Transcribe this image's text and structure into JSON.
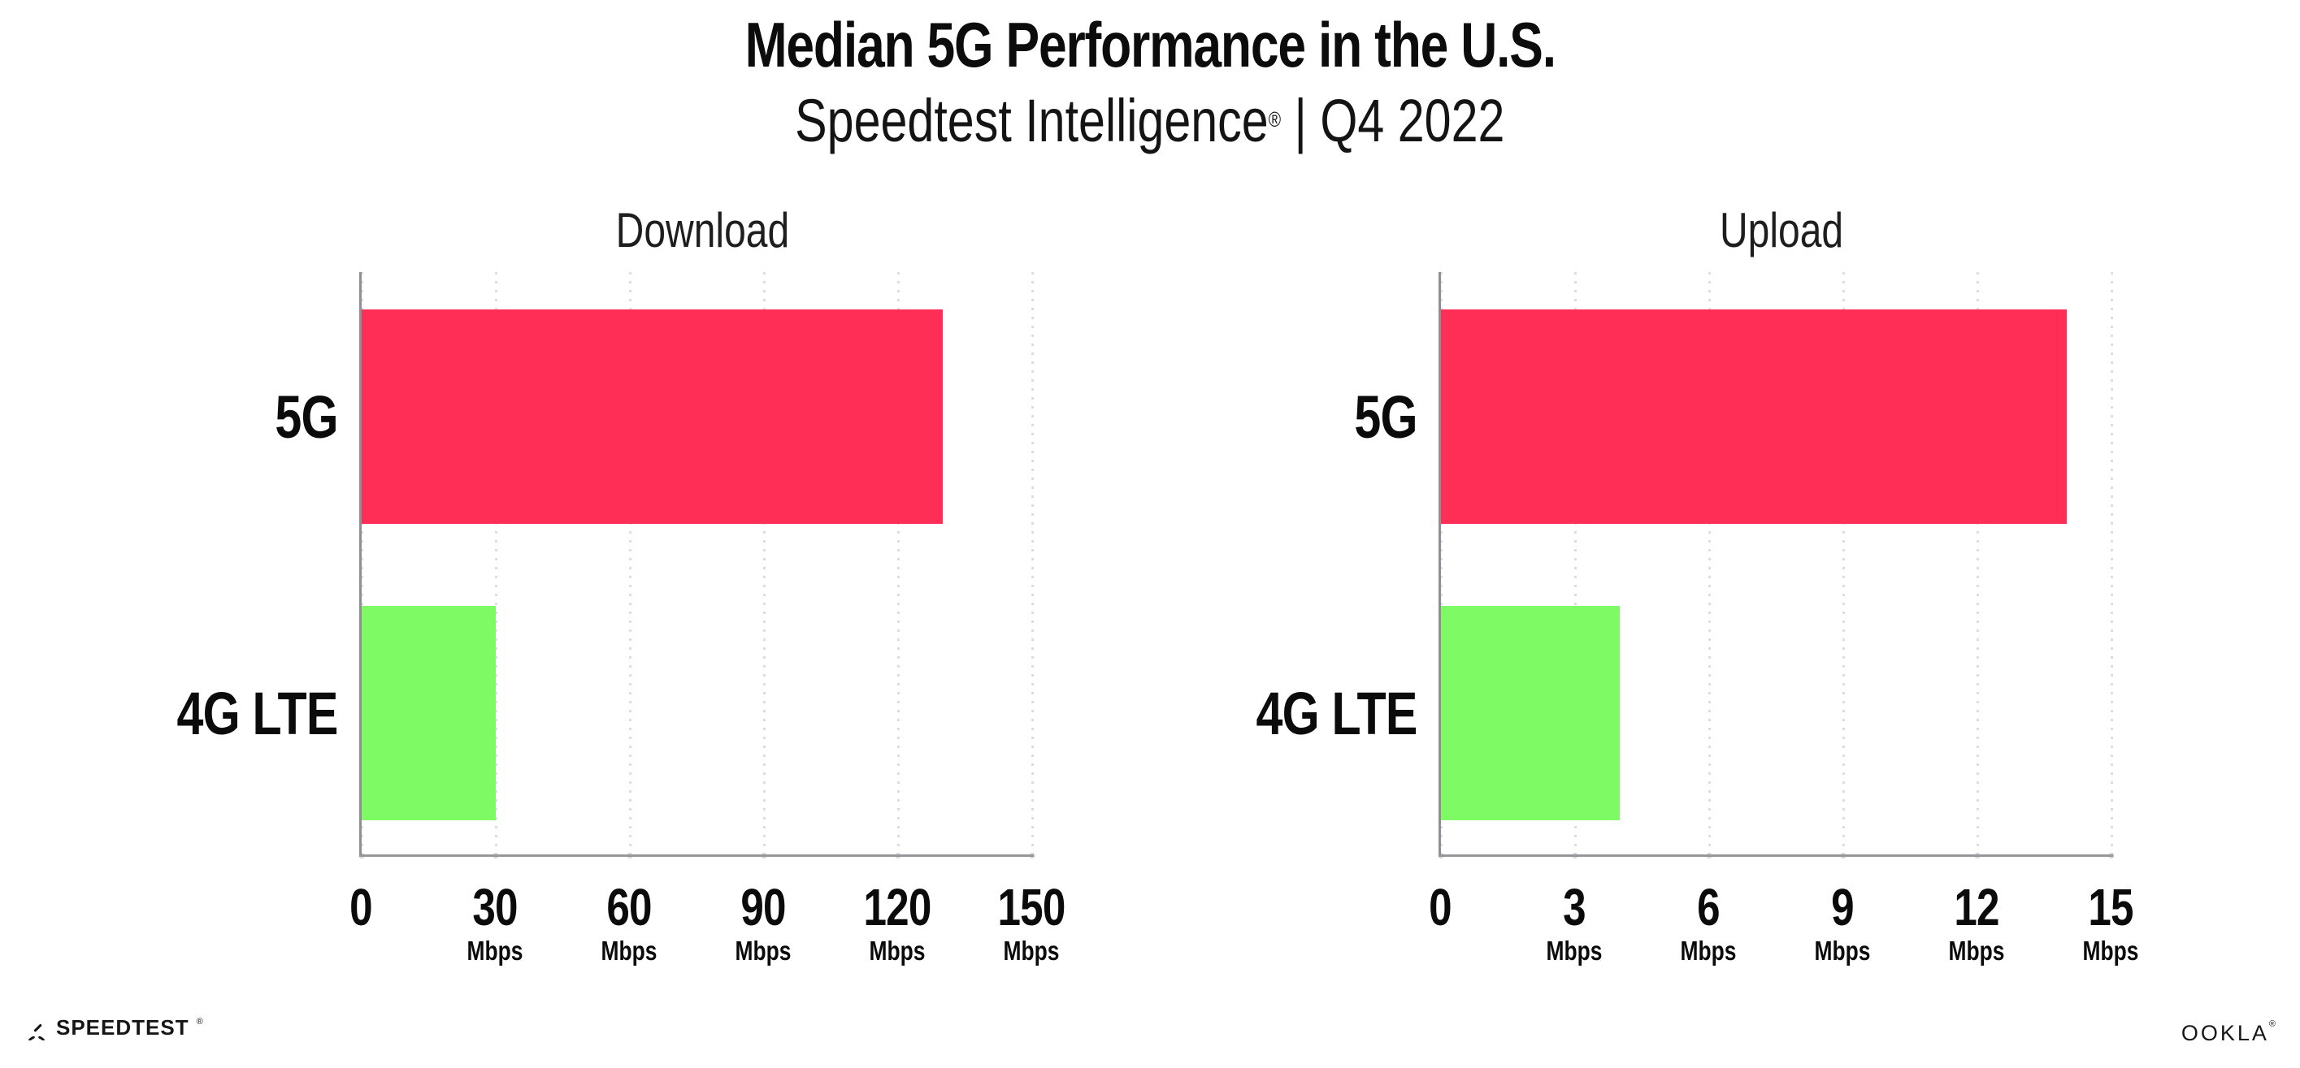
{
  "header": {
    "title": "Median 5G Performance in the U.S.",
    "subtitle_brand": "Speedtest Intelligence",
    "subtitle_reg": "®",
    "subtitle_rest": " | Q4 2022"
  },
  "chart_data": [
    {
      "type": "bar",
      "orientation": "horizontal",
      "title": "Download",
      "categories": [
        "5G",
        "4G LTE"
      ],
      "values": [
        130,
        30
      ],
      "bar_colors": [
        "#ff2e57",
        "#7dfa64"
      ],
      "xlim": [
        0,
        150
      ],
      "ticks": [
        0,
        30,
        60,
        90,
        120,
        150
      ],
      "tick_unit_label": "Mbps",
      "xlabel": "",
      "ylabel": "",
      "grid": "dotted-vertical",
      "legend": "none"
    },
    {
      "type": "bar",
      "orientation": "horizontal",
      "title": "Upload",
      "categories": [
        "5G",
        "4G LTE"
      ],
      "values": [
        14,
        4
      ],
      "bar_colors": [
        "#ff2e57",
        "#7dfa64"
      ],
      "xlim": [
        0,
        15
      ],
      "ticks": [
        0,
        3,
        6,
        9,
        12,
        15
      ],
      "tick_unit_label": "Mbps",
      "xlabel": "",
      "ylabel": "",
      "grid": "dotted-vertical",
      "legend": "none"
    }
  ],
  "footer": {
    "speedtest_text": "SPEEDTEST",
    "speedtest_reg": "®",
    "speedtest_icon": "gauge-icon",
    "ookla_text": "OOKLA",
    "ookla_reg": "®"
  },
  "colors": {
    "bar_5g": "#ff2e57",
    "bar_4g_lte": "#7dfa64"
  }
}
